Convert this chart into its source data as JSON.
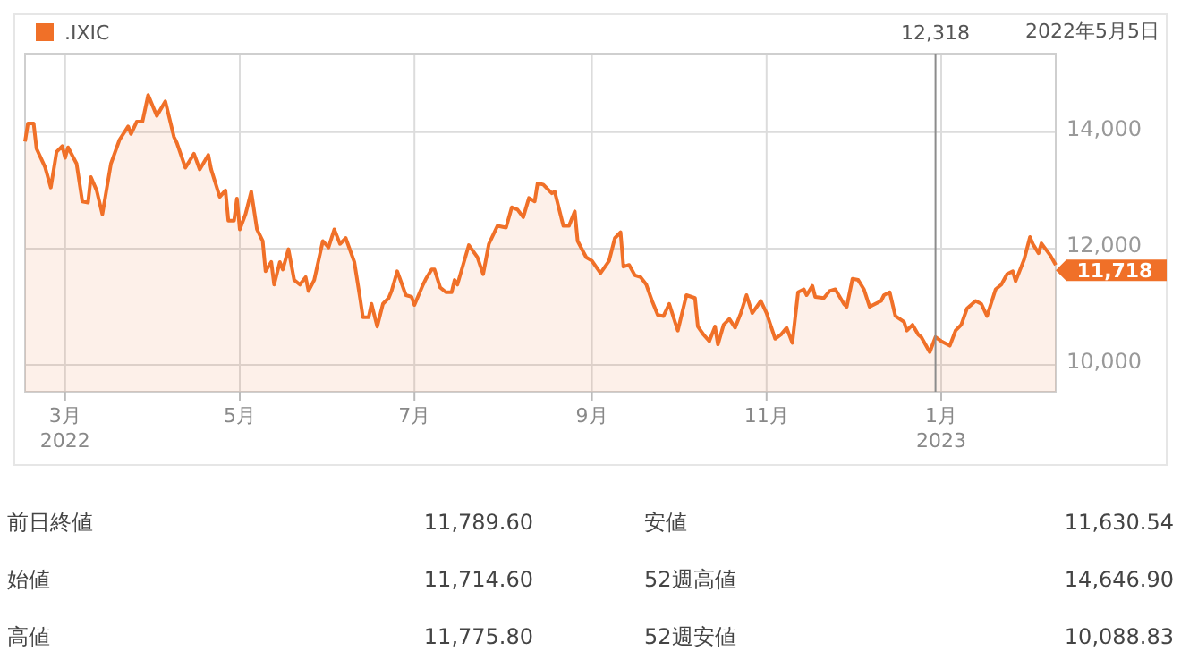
{
  "chart_data": {
    "type": "area",
    "xlim": [
      "2022-02-15",
      "2023-02-10"
    ],
    "ylim": [
      9540,
      15350
    ],
    "xticks": [
      {
        "value": "2022-03-01",
        "label": "3月\n2022"
      },
      {
        "value": "2022-05-01",
        "label": "5月"
      },
      {
        "value": "2022-07-01",
        "label": "7月"
      },
      {
        "value": "2022-09-01",
        "label": "9月"
      },
      {
        "value": "2022-11-01",
        "label": "11月"
      },
      {
        "value": "2023-01-01",
        "label": "1月\n2023"
      }
    ],
    "yticks": [
      {
        "value": 10000,
        "label": "10,000"
      },
      {
        "value": 12000,
        "label": "12,000"
      },
      {
        "value": 14000,
        "label": "14,000"
      }
    ],
    "grid": true,
    "legend": "top left",
    "ref_lines": [
      {
        "axis": "x",
        "value": "2022-12-30",
        "label": "12,318",
        "color": "#8c8c8c"
      }
    ],
    "annotations": [
      "2022年5月5日",
      "11,718",
      "前日終値",
      "11,789.60",
      "安値",
      "11,630.54",
      "始値",
      "11,714.60",
      "52週高値",
      "14,646.90",
      "高値",
      "11,775.80",
      "52週安値",
      "10,088.83"
    ],
    "series": [
      {
        "name": ".IXIC",
        "color": "#f07028",
        "x": [
          "2022-02-15",
          "2022-02-16",
          "2022-02-18",
          "2022-02-19",
          "2022-02-22",
          "2022-02-24",
          "2022-02-26",
          "2022-02-28",
          "2022-03-01",
          "2022-03-02",
          "2022-03-05",
          "2022-03-07",
          "2022-03-09",
          "2022-03-10",
          "2022-03-12",
          "2022-03-14",
          "2022-03-17",
          "2022-03-20",
          "2022-03-23",
          "2022-03-24",
          "2022-03-26",
          "2022-03-28",
          "2022-03-30",
          "2022-04-02",
          "2022-04-05",
          "2022-04-08",
          "2022-04-09",
          "2022-04-12",
          "2022-04-15",
          "2022-04-17",
          "2022-04-20",
          "2022-04-21",
          "2022-04-24",
          "2022-04-26",
          "2022-04-27",
          "2022-04-29",
          "2022-04-30",
          "2022-05-01",
          "2022-05-03",
          "2022-05-05",
          "2022-05-07",
          "2022-05-09",
          "2022-05-10",
          "2022-05-12",
          "2022-05-13",
          "2022-05-15",
          "2022-05-16",
          "2022-05-18",
          "2022-05-20",
          "2022-05-22",
          "2022-05-24",
          "2022-05-25",
          "2022-05-27",
          "2022-05-30",
          "2022-06-01",
          "2022-06-03",
          "2022-06-05",
          "2022-06-07",
          "2022-06-10",
          "2022-06-12",
          "2022-06-13",
          "2022-06-15",
          "2022-06-16",
          "2022-06-18",
          "2022-06-20",
          "2022-06-22",
          "2022-06-23",
          "2022-06-25",
          "2022-06-28",
          "2022-06-30",
          "2022-07-01",
          "2022-07-04",
          "2022-07-05",
          "2022-07-07",
          "2022-07-08",
          "2022-07-10",
          "2022-07-12",
          "2022-07-14",
          "2022-07-15",
          "2022-07-16",
          "2022-07-20",
          "2022-07-23",
          "2022-07-25",
          "2022-07-27",
          "2022-07-30",
          "2022-08-02",
          "2022-08-04",
          "2022-08-06",
          "2022-08-08",
          "2022-08-10",
          "2022-08-12",
          "2022-08-13",
          "2022-08-15",
          "2022-08-18",
          "2022-08-19",
          "2022-08-22",
          "2022-08-24",
          "2022-08-26",
          "2022-08-27",
          "2022-08-30",
          "2022-09-01",
          "2022-09-04",
          "2022-09-07",
          "2022-09-09",
          "2022-09-11",
          "2022-09-12",
          "2022-09-14",
          "2022-09-16",
          "2022-09-18",
          "2022-09-20",
          "2022-09-22",
          "2022-09-24",
          "2022-09-26",
          "2022-09-28",
          "2022-09-30",
          "2022-10-01",
          "2022-10-04",
          "2022-10-07",
          "2022-10-08",
          "2022-10-10",
          "2022-10-12",
          "2022-10-14",
          "2022-10-15",
          "2022-10-17",
          "2022-10-19",
          "2022-10-21",
          "2022-10-23",
          "2022-10-25",
          "2022-10-27",
          "2022-10-30",
          "2022-11-01",
          "2022-11-04",
          "2022-11-06",
          "2022-11-08",
          "2022-11-10",
          "2022-11-12",
          "2022-11-14",
          "2022-11-15",
          "2022-11-17",
          "2022-11-18",
          "2022-11-21",
          "2022-11-23",
          "2022-11-25",
          "2022-11-28",
          "2022-11-29",
          "2022-12-01",
          "2022-12-03",
          "2022-12-05",
          "2022-12-07",
          "2022-12-09",
          "2022-12-11",
          "2022-12-12",
          "2022-12-14",
          "2022-12-16",
          "2022-12-19",
          "2022-12-20",
          "2022-12-22",
          "2022-12-24",
          "2022-12-25",
          "2022-12-28",
          "2022-12-30",
          "2023-01-01",
          "2023-01-04",
          "2023-01-06",
          "2023-01-08",
          "2023-01-10",
          "2023-01-13",
          "2023-01-15",
          "2023-01-17",
          "2023-01-20",
          "2023-01-22",
          "2023-01-24",
          "2023-01-26",
          "2023-01-27",
          "2023-01-30",
          "2023-02-01",
          "2023-02-02",
          "2023-02-04",
          "2023-02-05",
          "2023-02-08",
          "2023-02-10"
        ],
        "values": [
          13840,
          14150,
          14150,
          13720,
          13400,
          13050,
          13660,
          13760,
          13560,
          13740,
          13460,
          12810,
          12790,
          13230,
          13000,
          12590,
          13460,
          13870,
          14100,
          13970,
          14180,
          14180,
          14640,
          14280,
          14530,
          13920,
          13820,
          13390,
          13630,
          13360,
          13610,
          13360,
          12890,
          13000,
          12480,
          12480,
          12860,
          12330,
          12590,
          12980,
          12330,
          12130,
          11610,
          11770,
          11380,
          11770,
          11640,
          11990,
          11460,
          11380,
          11510,
          11270,
          11460,
          12130,
          12020,
          12330,
          12080,
          12180,
          11770,
          11150,
          10820,
          10820,
          11050,
          10660,
          11050,
          11150,
          11270,
          11610,
          11200,
          11170,
          11030,
          11380,
          11480,
          11640,
          11640,
          11330,
          11250,
          11250,
          11460,
          11380,
          12060,
          11850,
          11560,
          12080,
          12390,
          12360,
          12710,
          12670,
          12540,
          12870,
          12810,
          13120,
          13100,
          12950,
          12980,
          12390,
          12390,
          12640,
          12130,
          11850,
          11790,
          11580,
          11790,
          12180,
          12280,
          11690,
          11720,
          11540,
          11510,
          11380,
          11100,
          10860,
          10840,
          11050,
          10740,
          10590,
          11200,
          11150,
          10660,
          10520,
          10410,
          10660,
          10350,
          10690,
          10790,
          10640,
          10890,
          11200,
          10890,
          11100,
          10890,
          10450,
          10520,
          10640,
          10380,
          11250,
          11300,
          11200,
          11360,
          11170,
          11150,
          11270,
          11300,
          11050,
          11000,
          11480,
          11460,
          11300,
          11000,
          11050,
          11100,
          11200,
          11250,
          10840,
          10740,
          10590,
          10690,
          10520,
          10480,
          10220,
          10480,
          10410,
          10330,
          10590,
          10690,
          10970,
          11100,
          11050,
          10840,
          11300,
          11380,
          11560,
          11610,
          11440,
          11820,
          12200,
          12080,
          11920,
          12090,
          11890,
          11720
        ]
      }
    ]
  }
}
